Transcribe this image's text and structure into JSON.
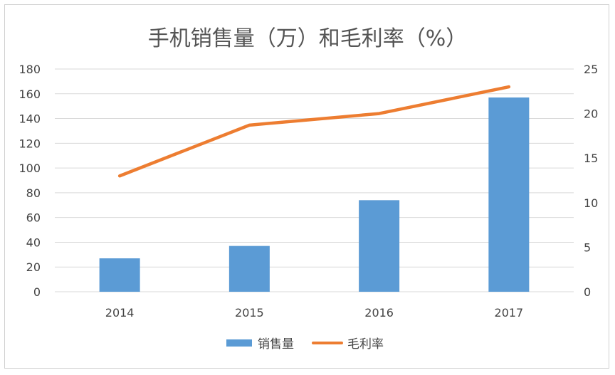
{
  "chart_data": {
    "type": "bar",
    "title": "手机销售量（万）和毛利率（%）",
    "categories": [
      "2014",
      "2015",
      "2016",
      "2017"
    ],
    "series": [
      {
        "name": "销售量",
        "type": "bar",
        "axis": "left",
        "values": [
          27,
          37,
          74,
          157
        ]
      },
      {
        "name": "毛利率",
        "type": "line",
        "axis": "right",
        "values": [
          13,
          18.7,
          20,
          23
        ]
      }
    ],
    "y_left": {
      "min": 0,
      "max": 180,
      "step": 20
    },
    "y_right": {
      "min": 0,
      "max": 25,
      "step": 5
    },
    "grid": true,
    "legend_position": "bottom",
    "colors": {
      "bar": "#5b9bd5",
      "line": "#ed7d31",
      "grid": "#d9d9d9"
    }
  }
}
